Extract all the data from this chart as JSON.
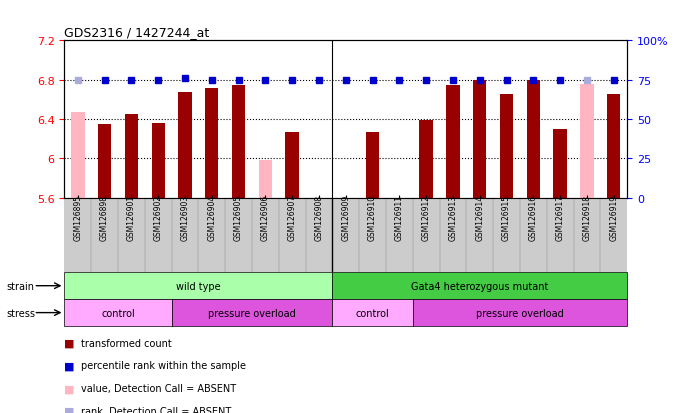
{
  "title": "GDS2316 / 1427244_at",
  "samples": [
    "GSM126895",
    "GSM126898",
    "GSM126901",
    "GSM126902",
    "GSM126903",
    "GSM126904",
    "GSM126905",
    "GSM126906",
    "GSM126907",
    "GSM126908",
    "GSM126909",
    "GSM126910",
    "GSM126911",
    "GSM126912",
    "GSM126913",
    "GSM126914",
    "GSM126915",
    "GSM126916",
    "GSM126917",
    "GSM126918",
    "GSM126919"
  ],
  "bar_values": [
    null,
    6.35,
    6.45,
    6.36,
    6.68,
    6.72,
    6.75,
    null,
    6.27,
    null,
    null,
    6.27,
    null,
    6.39,
    6.75,
    6.8,
    6.65,
    6.8,
    6.3,
    null,
    6.65
  ],
  "absent_values": [
    6.47,
    null,
    null,
    null,
    null,
    null,
    null,
    5.98,
    null,
    5.58,
    5.57,
    null,
    null,
    null,
    null,
    null,
    null,
    null,
    null,
    6.76,
    null
  ],
  "rank_values": [
    null,
    75,
    75,
    75,
    76,
    75,
    75,
    75,
    75,
    75,
    75,
    75,
    75,
    75,
    75,
    75,
    75,
    75,
    75,
    null,
    75
  ],
  "absent_rank_values": [
    75,
    null,
    null,
    null,
    null,
    null,
    null,
    null,
    null,
    null,
    null,
    null,
    null,
    null,
    null,
    null,
    null,
    null,
    null,
    75,
    null
  ],
  "rank_absent_special": [
    null,
    null,
    null,
    null,
    null,
    null,
    null,
    null,
    null,
    null,
    null,
    null,
    null,
    null,
    null,
    null,
    null,
    null,
    null,
    null,
    null
  ],
  "ylim": [
    5.6,
    7.2
  ],
  "yticks": [
    5.6,
    6.0,
    6.4,
    6.8,
    7.2
  ],
  "ytick_labels": [
    "5.6",
    "6",
    "6.4",
    "6.8",
    "7.2"
  ],
  "right_yticks": [
    0,
    25,
    50,
    75,
    100
  ],
  "right_ytick_labels": [
    "0",
    "25",
    "50",
    "75",
    "100%"
  ],
  "bar_color": "#990000",
  "absent_bar_color": "#FFB6C1",
  "rank_color": "#0000CC",
  "rank_absent_color": "#AAAADD",
  "strain_wt_color": "#AAFFAA",
  "strain_mut_color": "#44CC44",
  "stress_ctrl_color": "#FFAAFF",
  "stress_over_color": "#DD55DD",
  "bg_color": "#EBEBEB",
  "xticklabel_bg": "#CCCCCC",
  "legend_items": [
    {
      "label": "transformed count",
      "color": "#990000"
    },
    {
      "label": "percentile rank within the sample",
      "color": "#0000CC"
    },
    {
      "label": "value, Detection Call = ABSENT",
      "color": "#FFB6C1"
    },
    {
      "label": "rank, Detection Call = ABSENT",
      "color": "#AAAADD"
    }
  ]
}
